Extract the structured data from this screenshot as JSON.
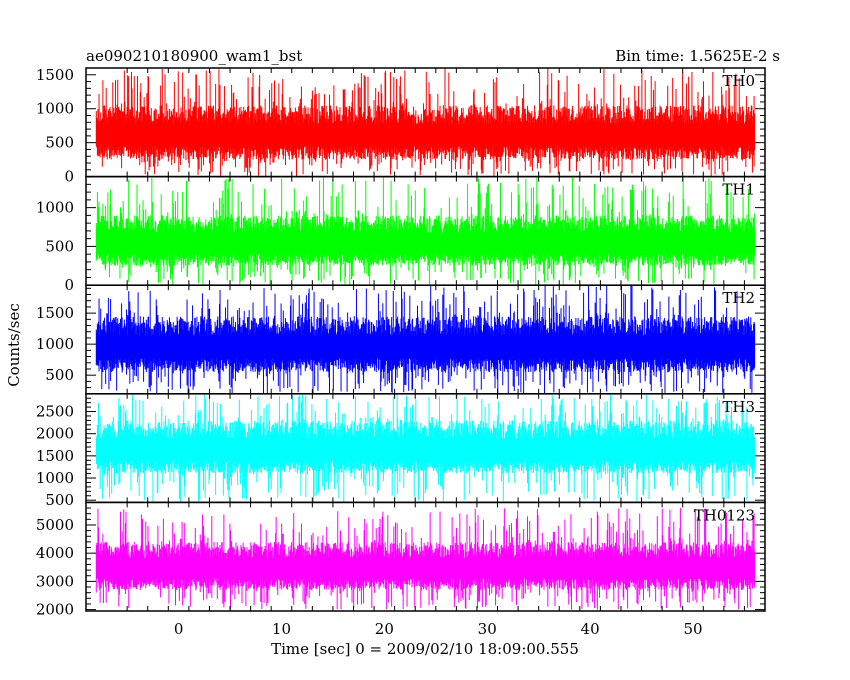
{
  "chart_data": {
    "type": "line",
    "title": "ae090210180900_wam1_bst",
    "subtitle": "Bin time: 1.5625E-2 s",
    "xlabel": "Time [sec] 0 = 2009/02/10 18:09:00.555",
    "ylabel": "Counts/sec",
    "xlim": [
      -9,
      57
    ],
    "x_data_range": [
      -8,
      56
    ],
    "xticks": [
      0,
      10,
      20,
      30,
      40,
      50
    ],
    "grid": false,
    "panels": [
      {
        "name": "TH0",
        "color": "#ff0000",
        "ylim": [
          0,
          1600
        ],
        "yticks": [
          0,
          500,
          1000,
          1500
        ],
        "typical_range": [
          250,
          1050
        ],
        "peak_range": [
          1000,
          1600
        ],
        "min_range": [
          0,
          250
        ]
      },
      {
        "name": "TH1",
        "color": "#00ff00",
        "ylim": [
          0,
          1400
        ],
        "yticks": [
          0,
          500,
          1000
        ],
        "typical_range": [
          250,
          900
        ],
        "peak_range": [
          900,
          1400
        ],
        "min_range": [
          0,
          250
        ]
      },
      {
        "name": "TH2",
        "color": "#0000ff",
        "ylim": [
          200,
          1950
        ],
        "yticks": [
          500,
          1000,
          1500
        ],
        "typical_range": [
          550,
          1450
        ],
        "peak_range": [
          1450,
          1950
        ],
        "min_range": [
          200,
          550
        ]
      },
      {
        "name": "TH3",
        "color": "#00ffff",
        "ylim": [
          450,
          2900
        ],
        "yticks": [
          500,
          1000,
          1500,
          2000,
          2500
        ],
        "typical_range": [
          1100,
          2300
        ],
        "peak_range": [
          2300,
          2900
        ],
        "min_range": [
          450,
          1100
        ]
      },
      {
        "name": "TH0123",
        "color": "#ff00ff",
        "ylim": [
          1950,
          5800
        ],
        "yticks": [
          2000,
          3000,
          4000,
          5000
        ],
        "typical_range": [
          2700,
          4400
        ],
        "peak_range": [
          4400,
          5600
        ],
        "min_range": [
          2000,
          2700
        ]
      }
    ]
  }
}
